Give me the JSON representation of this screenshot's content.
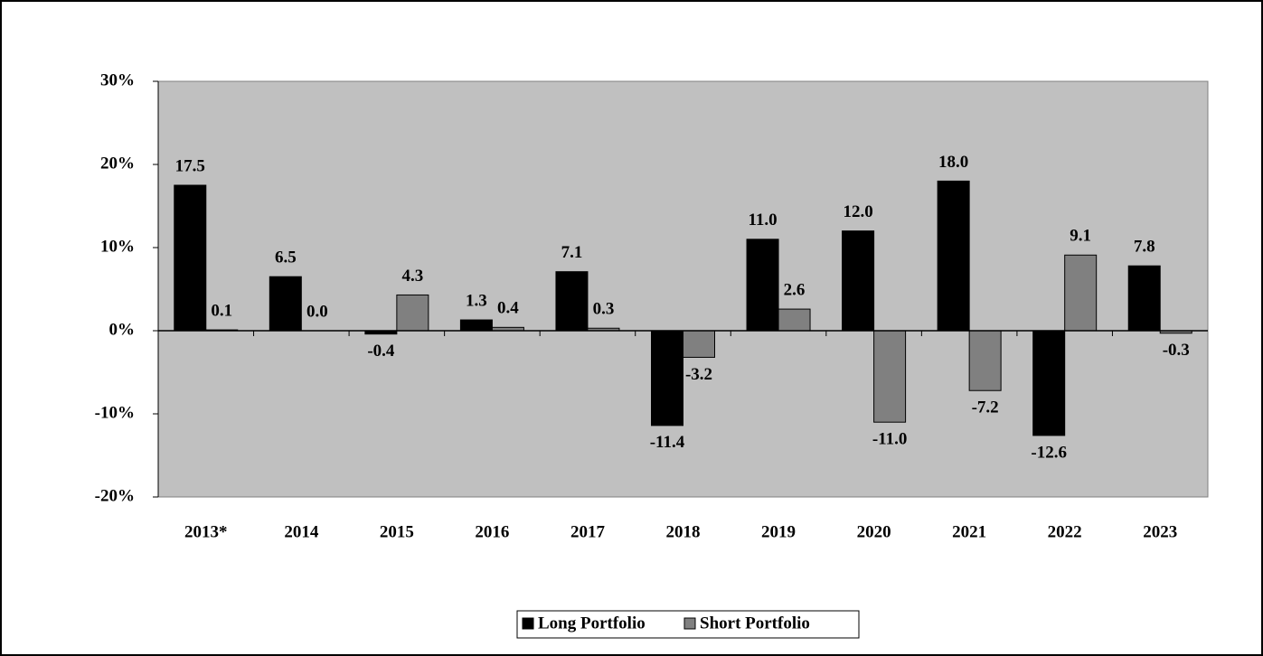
{
  "chart_data": {
    "type": "bar",
    "categories": [
      "2013*",
      "2014",
      "2015",
      "2016",
      "2017",
      "2018",
      "2019",
      "2020",
      "2021",
      "2022",
      "2023"
    ],
    "series": [
      {
        "name": "Long Portfolio",
        "color": "#000000",
        "values": [
          17.5,
          6.5,
          -0.4,
          1.3,
          7.1,
          -11.4,
          11.0,
          12.0,
          18.0,
          -12.6,
          7.8
        ],
        "value_labels": [
          "17.5",
          "6.5",
          "-0.4",
          "1.3",
          "7.1",
          "-11.4",
          "11.0",
          "12.0",
          "18.0",
          "-12.6",
          "7.8"
        ]
      },
      {
        "name": "Short Portfolio",
        "color": "#808080",
        "values": [
          0.1,
          0.0,
          4.3,
          0.4,
          0.3,
          -3.2,
          2.6,
          -11.0,
          -7.2,
          9.1,
          -0.3
        ],
        "value_labels": [
          "0.1",
          "0.0",
          "4.3",
          "0.4",
          "0.3",
          "-3.2",
          "2.6",
          "-11.0",
          "-7.2",
          "9.1",
          "-0.3"
        ]
      }
    ],
    "ylim": [
      -20,
      30
    ],
    "yticks": [
      {
        "value": -20,
        "label": "-20%"
      },
      {
        "value": -10,
        "label": "-10%"
      },
      {
        "value": 0,
        "label": "0%"
      },
      {
        "value": 10,
        "label": "10%"
      },
      {
        "value": 20,
        "label": "20%"
      },
      {
        "value": 30,
        "label": "30%"
      }
    ],
    "grid": false,
    "legend": "bottom",
    "plot_background": "#c0c0c0"
  }
}
